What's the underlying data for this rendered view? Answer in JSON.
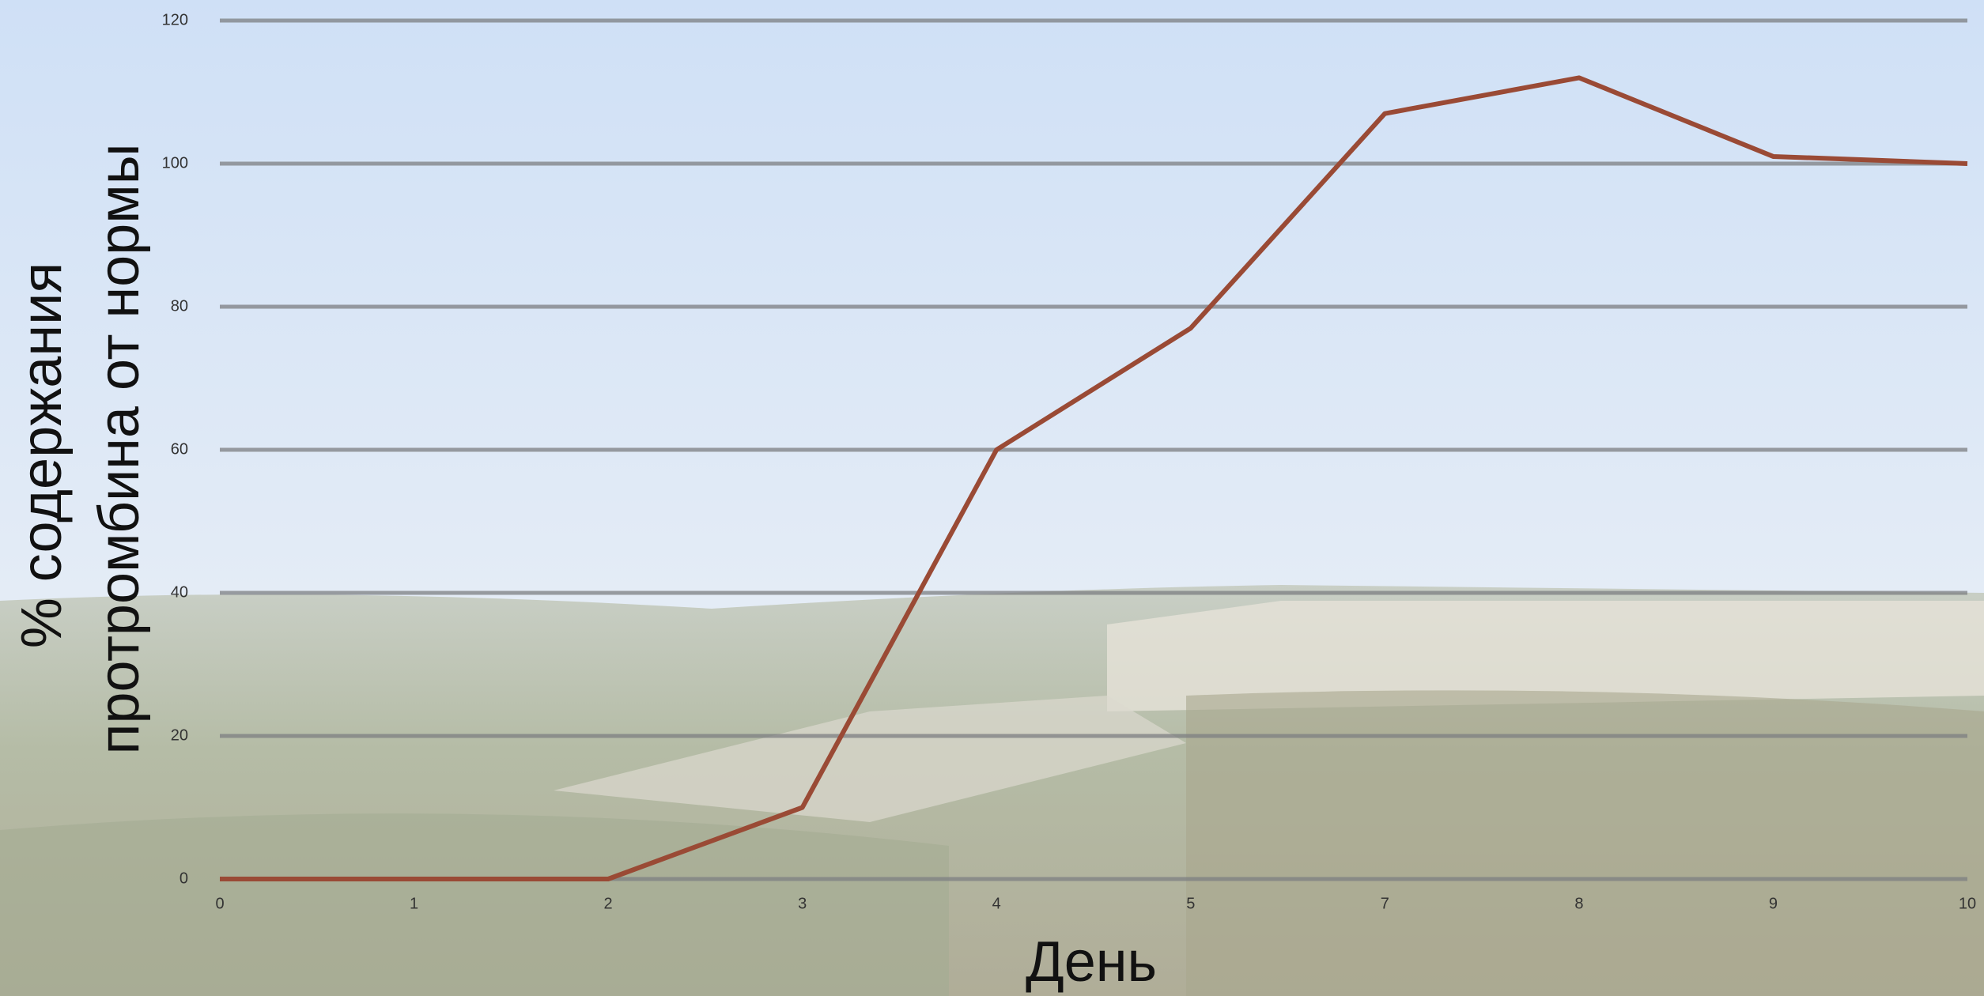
{
  "chart_data": {
    "type": "line",
    "x_label": "День",
    "y_label": [
      "% содержания",
      "протромбина от нормы"
    ],
    "categories": [
      "0",
      "1",
      "2",
      "3",
      "4",
      "5",
      "7",
      "8",
      "9",
      "10"
    ],
    "series": [
      {
        "color": "#9a4a35",
        "values": [
          0,
          0,
          0,
          10,
          60,
          77,
          107,
          112,
          101,
          100
        ]
      }
    ],
    "ylim": [
      0,
      120
    ],
    "yticks": [
      0,
      20,
      40,
      60,
      80,
      100,
      120
    ],
    "grid": true
  }
}
